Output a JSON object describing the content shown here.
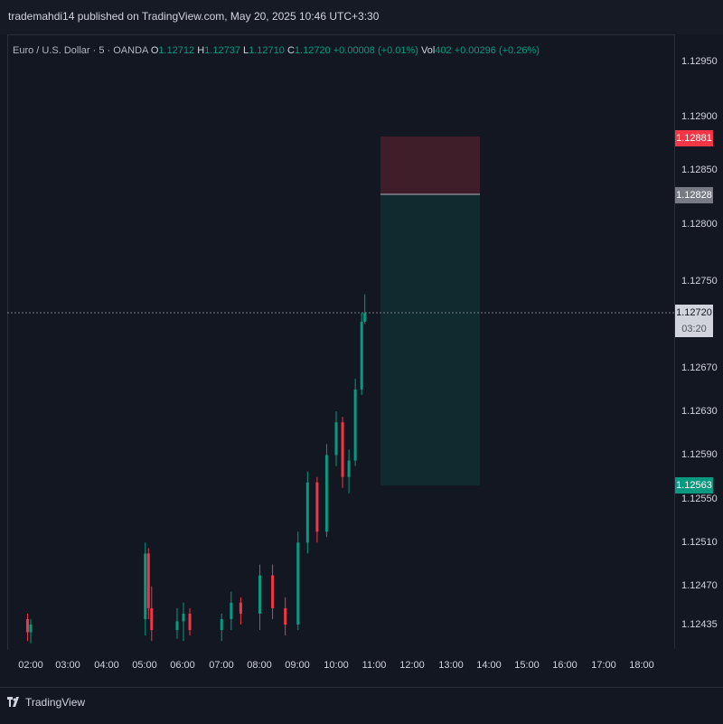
{
  "header": {
    "publisher_text": "trademahdi14 published on TradingView.com, May 20, 2025 10:46 UTC+3:30"
  },
  "legend": {
    "symbol": "Euro / U.S. Dollar · 5 · OANDA",
    "o_label": "O",
    "o_value": "1.12712",
    "h_label": "H",
    "h_value": "1.12737",
    "l_label": "L",
    "l_value": "1.12710",
    "c_label": "C",
    "c_value": "1.12720",
    "change": "+0.00008 (+0.01%)",
    "vol_label": "Vol",
    "vol_value": "402",
    "vol_change": "+0.00296 (+0.26%)"
  },
  "price_axis": {
    "ticks": [
      "1.12950",
      "1.12900",
      "1.12850",
      "1.12800",
      "1.12750",
      "1.12670",
      "1.12630",
      "1.12590",
      "1.12550",
      "1.12510",
      "1.12470",
      "1.12435"
    ]
  },
  "time_axis": {
    "ticks": [
      "02:00",
      "03:00",
      "04:00",
      "05:00",
      "06:00",
      "07:00",
      "08:00",
      "09:00",
      "10:00",
      "11:00",
      "12:00",
      "13:00",
      "14:00",
      "15:00",
      "16:00",
      "17:00",
      "18:00"
    ]
  },
  "position_tool": {
    "stop_price": "1.12881",
    "entry_price": "1.12828",
    "target_price": "1.12563",
    "stop_color": "#f23645",
    "target_color": "#089981"
  },
  "current_price": {
    "price": "1.12720",
    "countdown": "03:20"
  },
  "footer": {
    "brand": "TradingView"
  },
  "colors": {
    "up": "#089981",
    "down": "#f23645",
    "background": "#131722"
  },
  "chart_data": {
    "type": "candlestick",
    "title": "Euro / U.S. Dollar · 5 · OANDA",
    "xlabel": "",
    "ylabel": "",
    "candles": [
      {
        "t": "01:55",
        "o": 1.1244,
        "h": 1.12445,
        "l": 1.1242,
        "c": 1.12428
      },
      {
        "t": "02:00",
        "o": 1.12428,
        "h": 1.1244,
        "l": 1.12418,
        "c": 1.12435
      },
      {
        "t": "05:00",
        "o": 1.1244,
        "h": 1.1251,
        "l": 1.12425,
        "c": 1.125
      },
      {
        "t": "05:05",
        "o": 1.125,
        "h": 1.12505,
        "l": 1.1244,
        "c": 1.1245
      },
      {
        "t": "05:10",
        "o": 1.1245,
        "h": 1.1247,
        "l": 1.1242,
        "c": 1.1243
      },
      {
        "t": "05:50",
        "o": 1.1243,
        "h": 1.1245,
        "l": 1.12422,
        "c": 1.12438
      },
      {
        "t": "06:00",
        "o": 1.12438,
        "h": 1.12455,
        "l": 1.1242,
        "c": 1.12445
      },
      {
        "t": "06:10",
        "o": 1.12445,
        "h": 1.1245,
        "l": 1.12425,
        "c": 1.1243
      },
      {
        "t": "07:00",
        "o": 1.1243,
        "h": 1.12445,
        "l": 1.1242,
        "c": 1.1244
      },
      {
        "t": "07:15",
        "o": 1.1244,
        "h": 1.12465,
        "l": 1.1243,
        "c": 1.12455
      },
      {
        "t": "07:30",
        "o": 1.12455,
        "h": 1.1246,
        "l": 1.12435,
        "c": 1.12445
      },
      {
        "t": "08:00",
        "o": 1.12445,
        "h": 1.1249,
        "l": 1.1243,
        "c": 1.1248
      },
      {
        "t": "08:20",
        "o": 1.1248,
        "h": 1.1249,
        "l": 1.1244,
        "c": 1.1245
      },
      {
        "t": "08:40",
        "o": 1.1245,
        "h": 1.1246,
        "l": 1.12425,
        "c": 1.12435
      },
      {
        "t": "09:00",
        "o": 1.12435,
        "h": 1.1252,
        "l": 1.1243,
        "c": 1.1251
      },
      {
        "t": "09:15",
        "o": 1.1251,
        "h": 1.12575,
        "l": 1.125,
        "c": 1.12565
      },
      {
        "t": "09:30",
        "o": 1.12565,
        "h": 1.1257,
        "l": 1.1251,
        "c": 1.1252
      },
      {
        "t": "09:45",
        "o": 1.1252,
        "h": 1.126,
        "l": 1.12515,
        "c": 1.1259
      },
      {
        "t": "10:00",
        "o": 1.1259,
        "h": 1.1263,
        "l": 1.1258,
        "c": 1.1262
      },
      {
        "t": "10:10",
        "o": 1.1262,
        "h": 1.12625,
        "l": 1.1256,
        "c": 1.1257
      },
      {
        "t": "10:20",
        "o": 1.1257,
        "h": 1.12595,
        "l": 1.12555,
        "c": 1.12585
      },
      {
        "t": "10:30",
        "o": 1.12585,
        "h": 1.1266,
        "l": 1.1258,
        "c": 1.1265
      },
      {
        "t": "10:40",
        "o": 1.1265,
        "h": 1.1272,
        "l": 1.12645,
        "c": 1.12712
      },
      {
        "t": "10:45",
        "o": 1.12712,
        "h": 1.12737,
        "l": 1.1271,
        "c": 1.1272
      }
    ],
    "ylim": [
      1.124,
      1.1298
    ],
    "xlim": [
      "01:50",
      "18:20"
    ],
    "grid": false
  }
}
